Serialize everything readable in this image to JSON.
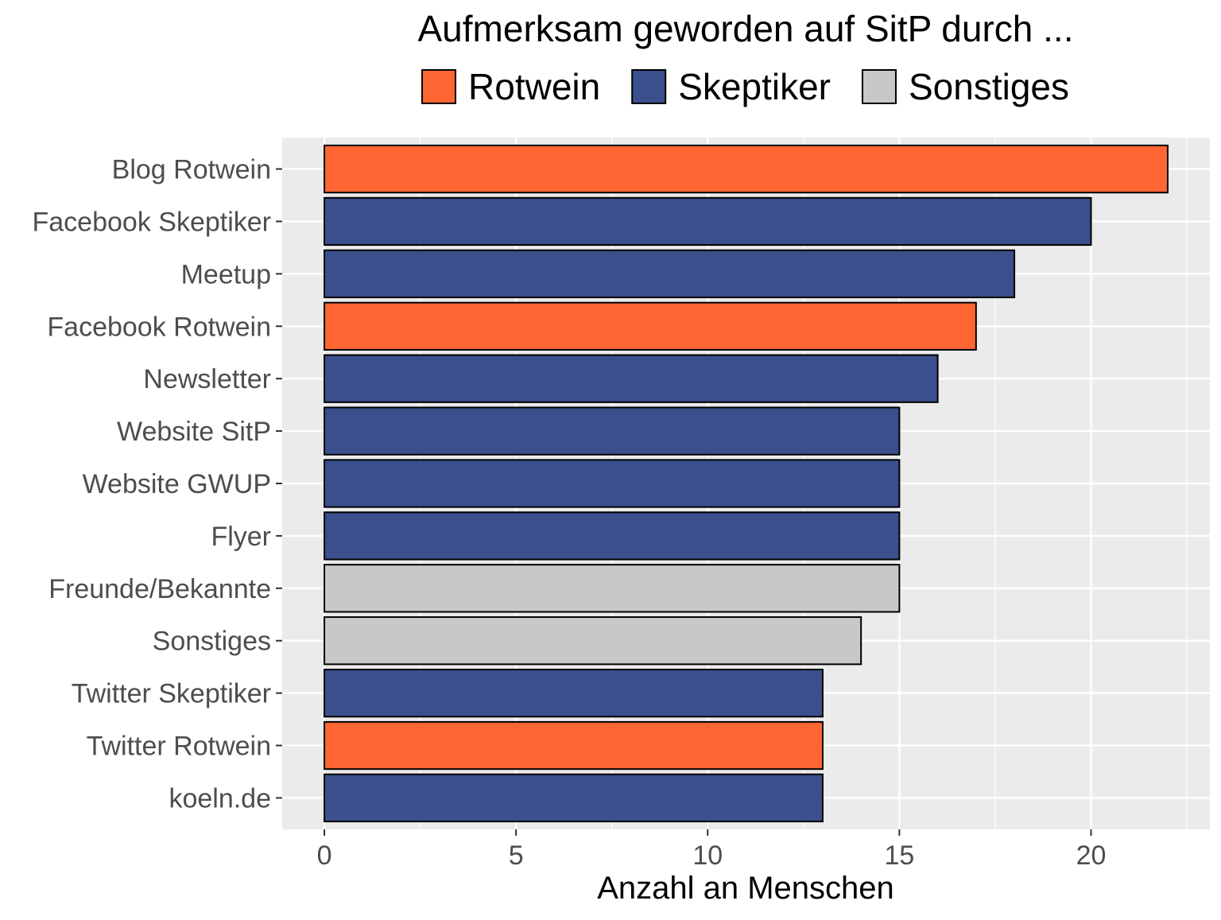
{
  "chart_data": {
    "type": "bar",
    "orientation": "horizontal",
    "title": "Aufmerksam geworden auf SitP durch ...",
    "xlabel": "Anzahl an Menschen",
    "ylabel": "",
    "xlim": [
      -1.1,
      23.1
    ],
    "x_ticks": [
      0,
      5,
      10,
      15,
      20
    ],
    "grid": true,
    "legend_position": "top",
    "legend": [
      {
        "name": "Rotwein",
        "color": "#FF6633"
      },
      {
        "name": "Skeptiker",
        "color": "#3A4F8C"
      },
      {
        "name": "Sonstiges",
        "color": "#C8C8C8"
      }
    ],
    "categories": [
      "Blog Rotwein",
      "Facebook Skeptiker",
      "Meetup",
      "Facebook Rotwein",
      "Newsletter",
      "Website SitP",
      "Website GWUP",
      "Flyer",
      "Freunde/Bekannte",
      "Sonstiges",
      "Twitter Skeptiker",
      "Twitter Rotwein",
      "koeln.de"
    ],
    "values": [
      22,
      20,
      18,
      17,
      16,
      15,
      15,
      15,
      15,
      14,
      13,
      13,
      13
    ],
    "groups": [
      "Rotwein",
      "Skeptiker",
      "Skeptiker",
      "Rotwein",
      "Skeptiker",
      "Skeptiker",
      "Skeptiker",
      "Skeptiker",
      "Sonstiges",
      "Sonstiges",
      "Skeptiker",
      "Rotwein",
      "Skeptiker"
    ]
  }
}
